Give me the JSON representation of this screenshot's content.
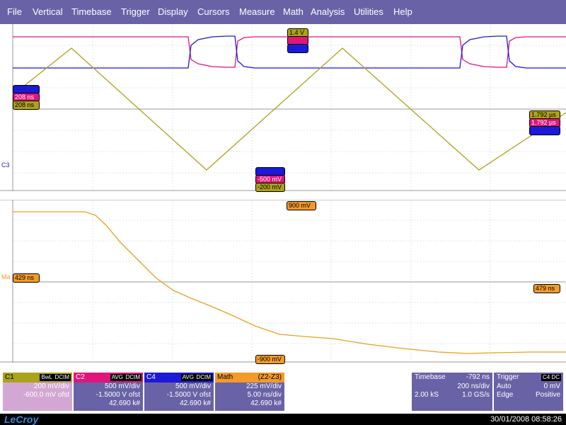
{
  "menu": [
    "File",
    "Vertical",
    "Timebase",
    "Trigger",
    "Display",
    "Cursors",
    "Measure",
    "Math",
    "Analysis",
    "Utilities",
    "Help"
  ],
  "colors": {
    "menu_bg": "#6a62a6",
    "c1": "#aca21c",
    "c2": "#e0167c",
    "c4": "#1a1ad8",
    "math": "#f39a2a"
  },
  "upper": {
    "trace_label": "C3",
    "markers": {
      "top_c1": "1.4 V",
      "top_c2": "",
      "top_c4": "",
      "left_c4": "",
      "left_c2": "208 ns",
      "left_c1": "208 ns",
      "right_c1": "1.792 µs",
      "right_c2": "1.792 µs",
      "right_c4": "",
      "bot_c4": "",
      "bot_c2": "-500 mV",
      "bot_c1": "-200 mV"
    }
  },
  "lower": {
    "trace_label": "Ma",
    "markers": {
      "top": "900 mV",
      "left": "429 ns",
      "right": "479 ns",
      "bottom": "-900 mV"
    }
  },
  "channels": {
    "c1": {
      "name": "C1",
      "badge1": "BwL",
      "badge2": "DCtM",
      "vdiv": "200 mV/div",
      "offset": "-600.0 mV ofst"
    },
    "c2": {
      "name": "C2",
      "badge1": "AVG",
      "badge2": "DCtM",
      "vdiv": "500 mV/div",
      "offset": "-1.5000 V ofst",
      "count": "42.690 k#"
    },
    "c4": {
      "name": "C4",
      "badge1": "AVG",
      "badge2": "DCtM",
      "vdiv": "500 mV/div",
      "offset": "-1.5000 V ofst",
      "count": "42.690 k#"
    },
    "math": {
      "name": "Math",
      "func": "(Z2-Z3)",
      "vdiv": "225 mV/div",
      "hdiv": "5.00 ns/div",
      "count": "42.690 k#"
    }
  },
  "timebase": {
    "label": "Timebase",
    "delay": "-792 ns",
    "tdiv": "200 ns/div",
    "samples": "2.00 kS",
    "rate": "1.0 GS/s"
  },
  "trigger": {
    "label": "Trigger",
    "badge": "C4 DC",
    "mode": "Auto",
    "level": "0 mV",
    "type": "Edge",
    "slope": "Positive"
  },
  "status": {
    "logo": "LeCroy",
    "datetime": "30/01/2008 08:58:26"
  }
}
